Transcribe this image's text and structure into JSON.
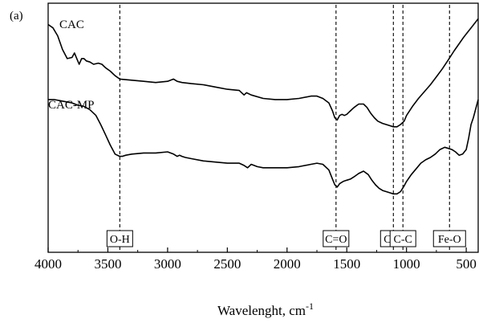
{
  "chart_data": {
    "type": "line",
    "panel_label": "(a)",
    "title": "",
    "xlabel": "Wavelenght, cm",
    "xlabel_superscript": "-1",
    "ylabel": "",
    "xlim": [
      4000,
      400
    ],
    "ylim": [
      0,
      1
    ],
    "x_reversed": true,
    "y_ticks_shown": false,
    "grid": false,
    "x_ticks": [
      4000,
      3500,
      3000,
      2500,
      2000,
      1500,
      1000,
      500
    ],
    "x_tick_labels": [
      "4000",
      "3500",
      "3000",
      "2500",
      "2000",
      "1500",
      "1000",
      "500"
    ],
    "series": [
      {
        "name": "CAC",
        "color": "#000000",
        "x": [
          4000,
          3960,
          3920,
          3880,
          3840,
          3800,
          3780,
          3760,
          3740,
          3720,
          3700,
          3680,
          3650,
          3620,
          3580,
          3550,
          3520,
          3480,
          3440,
          3400,
          3300,
          3200,
          3100,
          3000,
          2950,
          2920,
          2880,
          2800,
          2700,
          2600,
          2500,
          2400,
          2380,
          2360,
          2340,
          2300,
          2200,
          2100,
          2000,
          1900,
          1800,
          1750,
          1700,
          1650,
          1620,
          1600,
          1580,
          1560,
          1540,
          1520,
          1500,
          1470,
          1440,
          1400,
          1360,
          1330,
          1300,
          1270,
          1240,
          1200,
          1170,
          1140,
          1110,
          1080,
          1050,
          1020,
          1000,
          950,
          900,
          850,
          800,
          750,
          700,
          650,
          600,
          560,
          520,
          490,
          460,
          430,
          400
        ],
        "y": [
          0.97,
          0.955,
          0.92,
          0.86,
          0.82,
          0.825,
          0.845,
          0.82,
          0.795,
          0.82,
          0.82,
          0.81,
          0.805,
          0.795,
          0.8,
          0.795,
          0.78,
          0.765,
          0.745,
          0.73,
          0.725,
          0.72,
          0.715,
          0.72,
          0.73,
          0.72,
          0.715,
          0.71,
          0.705,
          0.695,
          0.685,
          0.68,
          0.67,
          0.66,
          0.67,
          0.66,
          0.645,
          0.64,
          0.64,
          0.645,
          0.655,
          0.655,
          0.645,
          0.625,
          0.59,
          0.56,
          0.55,
          0.57,
          0.575,
          0.57,
          0.575,
          0.59,
          0.605,
          0.62,
          0.62,
          0.605,
          0.58,
          0.56,
          0.545,
          0.535,
          0.53,
          0.525,
          0.52,
          0.52,
          0.53,
          0.545,
          0.57,
          0.61,
          0.645,
          0.675,
          0.705,
          0.74,
          0.775,
          0.815,
          0.855,
          0.885,
          0.915,
          0.935,
          0.955,
          0.975,
          0.995
        ]
      },
      {
        "name": "CAC-MP",
        "color": "#000000",
        "x": [
          4000,
          3950,
          3900,
          3850,
          3800,
          3750,
          3700,
          3650,
          3600,
          3560,
          3520,
          3480,
          3440,
          3400,
          3380,
          3350,
          3300,
          3200,
          3100,
          3000,
          2950,
          2920,
          2900,
          2880,
          2850,
          2800,
          2700,
          2600,
          2500,
          2400,
          2360,
          2330,
          2300,
          2250,
          2200,
          2100,
          2000,
          1900,
          1800,
          1750,
          1700,
          1650,
          1620,
          1600,
          1580,
          1560,
          1530,
          1500,
          1470,
          1440,
          1400,
          1360,
          1320,
          1290,
          1260,
          1230,
          1200,
          1170,
          1140,
          1110,
          1080,
          1050,
          1020,
          1000,
          960,
          920,
          880,
          840,
          800,
          760,
          720,
          680,
          650,
          620,
          590,
          560,
          530,
          500,
          480,
          460,
          440,
          420,
          400
        ],
        "y": [
          0.64,
          0.64,
          0.635,
          0.63,
          0.625,
          0.615,
          0.61,
          0.595,
          0.57,
          0.53,
          0.485,
          0.44,
          0.4,
          0.39,
          0.39,
          0.395,
          0.4,
          0.405,
          0.405,
          0.41,
          0.4,
          0.39,
          0.395,
          0.39,
          0.385,
          0.38,
          0.37,
          0.365,
          0.36,
          0.36,
          0.35,
          0.34,
          0.355,
          0.345,
          0.34,
          0.34,
          0.34,
          0.345,
          0.355,
          0.36,
          0.355,
          0.33,
          0.29,
          0.265,
          0.255,
          0.27,
          0.28,
          0.285,
          0.29,
          0.3,
          0.315,
          0.325,
          0.31,
          0.285,
          0.265,
          0.25,
          0.24,
          0.235,
          0.23,
          0.225,
          0.225,
          0.235,
          0.26,
          0.28,
          0.31,
          0.335,
          0.36,
          0.375,
          0.385,
          0.4,
          0.42,
          0.43,
          0.425,
          0.42,
          0.41,
          0.395,
          0.4,
          0.42,
          0.47,
          0.53,
          0.56,
          0.6,
          0.64
        ]
      }
    ],
    "annotations": [
      {
        "x": 3400,
        "text": "O-H"
      },
      {
        "x": 1590,
        "text": "C=O"
      },
      {
        "x": 1110,
        "text": "C-O"
      },
      {
        "x": 1030,
        "text": "C-C"
      },
      {
        "x": 640,
        "text": "Fe-O"
      }
    ]
  }
}
